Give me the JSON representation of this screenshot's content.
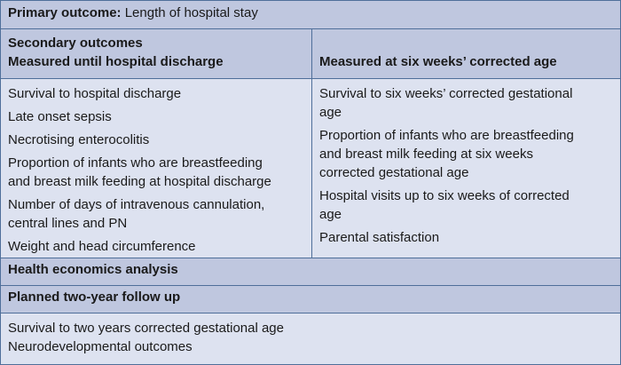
{
  "primary": {
    "label": "Primary outcome:",
    "value": "Length of hospital stay"
  },
  "secondary": {
    "title": "Secondary outcomes",
    "left_header": "Measured until hospital discharge",
    "right_header": "Measured at six weeks’ corrected age",
    "left_items": [
      [
        "Survival to hospital discharge"
      ],
      [
        "Late onset sepsis"
      ],
      [
        "Necrotising enterocolitis"
      ],
      [
        "Proportion of infants who are breastfeeding",
        "and breast milk feeding at hospital discharge"
      ],
      [
        "Number of days of intravenous cannulation,",
        "central lines and PN"
      ],
      [
        "Weight and head circumference"
      ]
    ],
    "right_items": [
      [
        "Survival to six weeks’ corrected gestational",
        "age"
      ],
      [
        "Proportion of infants who are breastfeeding",
        "and breast milk feeding at six weeks",
        "corrected gestational age"
      ],
      [
        "Hospital visits up to six weeks of corrected",
        "age"
      ],
      [
        "Parental satisfaction"
      ]
    ]
  },
  "health_economics": "Health economics analysis",
  "followup": {
    "title": "Planned two-year follow up",
    "items": [
      "Survival to two years corrected gestational age",
      "Neurodevelopmental outcomes"
    ]
  }
}
